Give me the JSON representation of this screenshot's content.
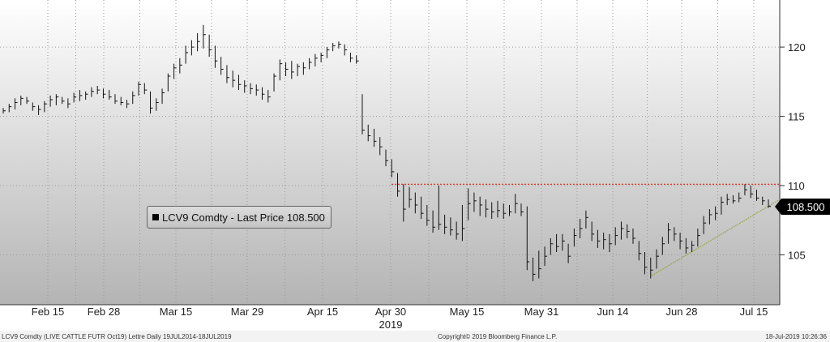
{
  "chart_data": {
    "type": "bar",
    "ticker": "LCV9 Comdty",
    "legend_label": "LCV9 Comdty - Last Price 108.500",
    "last_price_label": "108.500",
    "y_ticks": [
      "105",
      "110",
      "115",
      "120"
    ],
    "ylim": [
      101.4,
      123.4
    ],
    "x_ticks": [
      "Feb 15",
      "Feb 28",
      "Mar 15",
      "Mar 29",
      "Apr 15",
      "Apr 30",
      "May 15",
      "May 31",
      "Jun 14",
      "Jun 28",
      "Jul 15"
    ],
    "year_label": "2019",
    "resistance_level": 110.1,
    "trendline": [
      [
        103.5,
        109.0
      ]
    ],
    "colors": {
      "resistance": "#e0231c",
      "trendline": "#9aa64a",
      "bars": "#111111"
    },
    "bars": [
      [
        115.6,
        115.2,
        115.4
      ],
      [
        115.9,
        115.3,
        115.7
      ],
      [
        116.3,
        115.5,
        116.0
      ],
      [
        116.5,
        115.8,
        116.3
      ],
      [
        116.4,
        115.9,
        116.1
      ],
      [
        116.0,
        115.4,
        115.7
      ],
      [
        115.8,
        115.1,
        115.5
      ],
      [
        116.1,
        115.3,
        115.9
      ],
      [
        116.5,
        115.7,
        116.2
      ],
      [
        116.6,
        115.8,
        116.4
      ],
      [
        116.4,
        115.9,
        116.1
      ],
      [
        116.3,
        115.6,
        115.9
      ],
      [
        116.7,
        116.0,
        116.4
      ],
      [
        116.9,
        116.1,
        116.5
      ],
      [
        116.8,
        116.2,
        116.6
      ],
      [
        117.1,
        116.4,
        116.8
      ],
      [
        117.2,
        116.6,
        116.9
      ],
      [
        117.0,
        116.3,
        116.6
      ],
      [
        116.9,
        116.2,
        116.4
      ],
      [
        116.6,
        115.9,
        116.1
      ],
      [
        116.4,
        115.8,
        116.0
      ],
      [
        116.2,
        115.6,
        115.9
      ],
      [
        116.8,
        115.9,
        116.5
      ],
      [
        117.5,
        116.5,
        117.3
      ],
      [
        117.4,
        116.6,
        116.9
      ],
      [
        116.8,
        115.2,
        115.6
      ],
      [
        116.3,
        115.4,
        116.0
      ],
      [
        117.0,
        115.9,
        116.7
      ],
      [
        118.1,
        116.8,
        117.9
      ],
      [
        118.8,
        117.7,
        118.5
      ],
      [
        119.2,
        118.1,
        118.7
      ],
      [
        120.1,
        118.8,
        119.6
      ],
      [
        120.5,
        119.4,
        120.0
      ],
      [
        121.0,
        119.7,
        120.4
      ],
      [
        121.6,
        119.9,
        120.9
      ],
      [
        120.9,
        119.3,
        119.8
      ],
      [
        120.1,
        118.5,
        119.0
      ],
      [
        119.3,
        118.0,
        118.4
      ],
      [
        118.7,
        117.4,
        117.8
      ],
      [
        118.3,
        117.1,
        117.6
      ],
      [
        118.0,
        116.9,
        117.3
      ],
      [
        117.6,
        116.7,
        117.2
      ],
      [
        117.4,
        116.6,
        117.0
      ],
      [
        117.3,
        116.5,
        116.9
      ],
      [
        117.1,
        116.2,
        116.6
      ],
      [
        116.9,
        116.0,
        116.4
      ],
      [
        118.1,
        116.8,
        117.9
      ],
      [
        119.1,
        117.6,
        118.8
      ],
      [
        118.9,
        117.9,
        118.4
      ],
      [
        119.0,
        117.7,
        118.2
      ],
      [
        118.8,
        117.9,
        118.6
      ],
      [
        118.9,
        118.0,
        118.5
      ],
      [
        119.2,
        118.4,
        118.9
      ],
      [
        119.5,
        118.6,
        119.2
      ],
      [
        119.6,
        118.9,
        119.4
      ],
      [
        120.0,
        119.2,
        119.8
      ],
      [
        120.3,
        119.7,
        120.1
      ],
      [
        120.4,
        119.9,
        120.2
      ],
      [
        120.2,
        119.4,
        119.8
      ],
      [
        119.6,
        118.9,
        119.2
      ],
      [
        119.4,
        118.8,
        119.0
      ],
      [
        116.6,
        113.7,
        114.0
      ],
      [
        114.4,
        113.2,
        113.6
      ],
      [
        114.1,
        112.8,
        113.2
      ],
      [
        113.5,
        112.2,
        112.8
      ],
      [
        112.6,
        111.4,
        111.8
      ],
      [
        111.9,
        110.6,
        111.0
      ],
      [
        110.9,
        109.2,
        109.6
      ],
      [
        110.1,
        107.4,
        108.3
      ],
      [
        109.9,
        108.4,
        109.0
      ],
      [
        109.5,
        108.0,
        108.6
      ],
      [
        109.2,
        107.6,
        108.0
      ],
      [
        108.6,
        107.1,
        107.5
      ],
      [
        108.2,
        106.6,
        107.0
      ],
      [
        110.0,
        106.8,
        107.2
      ],
      [
        107.9,
        106.5,
        107.0
      ],
      [
        107.7,
        106.4,
        106.8
      ],
      [
        107.4,
        106.1,
        106.5
      ],
      [
        108.6,
        106.0,
        106.9
      ],
      [
        109.8,
        107.5,
        108.7
      ],
      [
        109.5,
        108.1,
        108.9
      ],
      [
        109.2,
        107.8,
        108.6
      ],
      [
        109.0,
        107.7,
        108.3
      ],
      [
        108.8,
        107.6,
        108.1
      ],
      [
        108.9,
        107.7,
        108.2
      ],
      [
        108.7,
        107.6,
        108.0
      ],
      [
        108.6,
        107.8,
        108.1
      ],
      [
        109.4,
        108.0,
        108.7
      ],
      [
        108.7,
        107.8,
        108.1
      ],
      [
        108.5,
        103.9,
        104.5
      ],
      [
        104.8,
        103.1,
        103.6
      ],
      [
        105.3,
        103.3,
        104.0
      ],
      [
        105.6,
        104.2,
        104.9
      ],
      [
        106.2,
        105.0,
        105.8
      ],
      [
        106.5,
        105.2,
        105.6
      ],
      [
        106.5,
        105.3,
        106.0
      ],
      [
        105.8,
        104.4,
        104.9
      ],
      [
        106.9,
        105.6,
        106.4
      ],
      [
        107.6,
        106.2,
        106.9
      ],
      [
        108.2,
        106.9,
        107.7
      ],
      [
        107.4,
        106.0,
        106.5
      ],
      [
        106.8,
        105.5,
        106.0
      ],
      [
        106.6,
        105.4,
        106.1
      ],
      [
        106.5,
        105.2,
        105.8
      ],
      [
        107.0,
        105.7,
        106.4
      ],
      [
        107.4,
        106.1,
        106.9
      ],
      [
        107.2,
        106.2,
        106.7
      ],
      [
        106.9,
        105.8,
        106.2
      ],
      [
        106.0,
        104.6,
        105.1
      ],
      [
        105.2,
        103.6,
        104.1
      ],
      [
        104.8,
        103.3,
        103.9
      ],
      [
        105.4,
        104.0,
        104.9
      ],
      [
        106.3,
        105.0,
        105.8
      ],
      [
        107.3,
        105.8,
        106.8
      ],
      [
        107.0,
        106.0,
        106.5
      ],
      [
        106.6,
        105.4,
        106.0
      ],
      [
        106.2,
        105.1,
        105.5
      ],
      [
        106.0,
        105.2,
        105.7
      ],
      [
        106.9,
        105.6,
        106.4
      ],
      [
        107.8,
        106.5,
        107.3
      ],
      [
        108.3,
        107.2,
        107.9
      ],
      [
        108.5,
        107.5,
        108.0
      ],
      [
        109.2,
        107.9,
        108.8
      ],
      [
        109.4,
        108.6,
        109.0
      ],
      [
        109.3,
        108.7,
        108.9
      ],
      [
        109.5,
        108.8,
        109.1
      ],
      [
        110.1,
        109.3,
        109.7
      ],
      [
        110.0,
        109.1,
        109.4
      ],
      [
        109.7,
        108.9,
        109.1
      ],
      [
        109.2,
        108.6,
        108.9
      ],
      [
        109.0,
        108.4,
        108.5
      ]
    ]
  },
  "footer": {
    "left": "LCV9 Comdty (LIVE CATTLE FUTR  Oct19) Lettre  Daily 19JUL2014-18JUL2019",
    "center": "Copyright© 2019 Bloomberg Finance L.P.",
    "right": "18-Jul-2019 10:26:36"
  }
}
